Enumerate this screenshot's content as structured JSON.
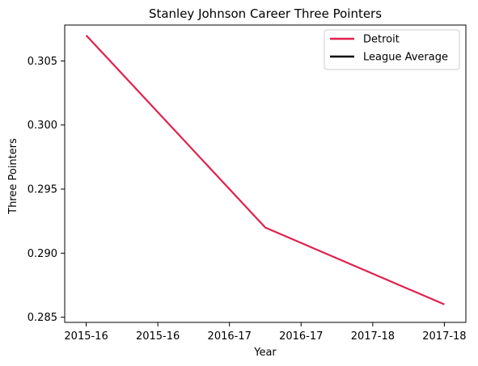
{
  "chart_data": {
    "type": "line",
    "title": "Stanley Johnson  Career Three Pointers",
    "xlabel": "Year",
    "ylabel": "Three Pointers",
    "x_tick_labels": [
      "2015-16",
      "2015-16",
      "2016-17",
      "2016-17",
      "2017-18",
      "2017-18"
    ],
    "x_range": [
      -0.12,
      2.12
    ],
    "ylim": [
      0.2846,
      0.3078
    ],
    "y_ticks": [
      0.285,
      0.29,
      0.295,
      0.3,
      0.305
    ],
    "y_tick_labels": [
      "0.285",
      "0.290",
      "0.295",
      "0.300",
      "0.305"
    ],
    "grid": false,
    "legend_position": "upper right",
    "series": [
      {
        "name": "Detroit",
        "color": "#e0204d",
        "x": [
          0,
          1,
          2
        ],
        "y": [
          0.307,
          0.292,
          0.286
        ]
      },
      {
        "name": "League Average",
        "color": "#000000",
        "x": [],
        "y": []
      }
    ]
  }
}
